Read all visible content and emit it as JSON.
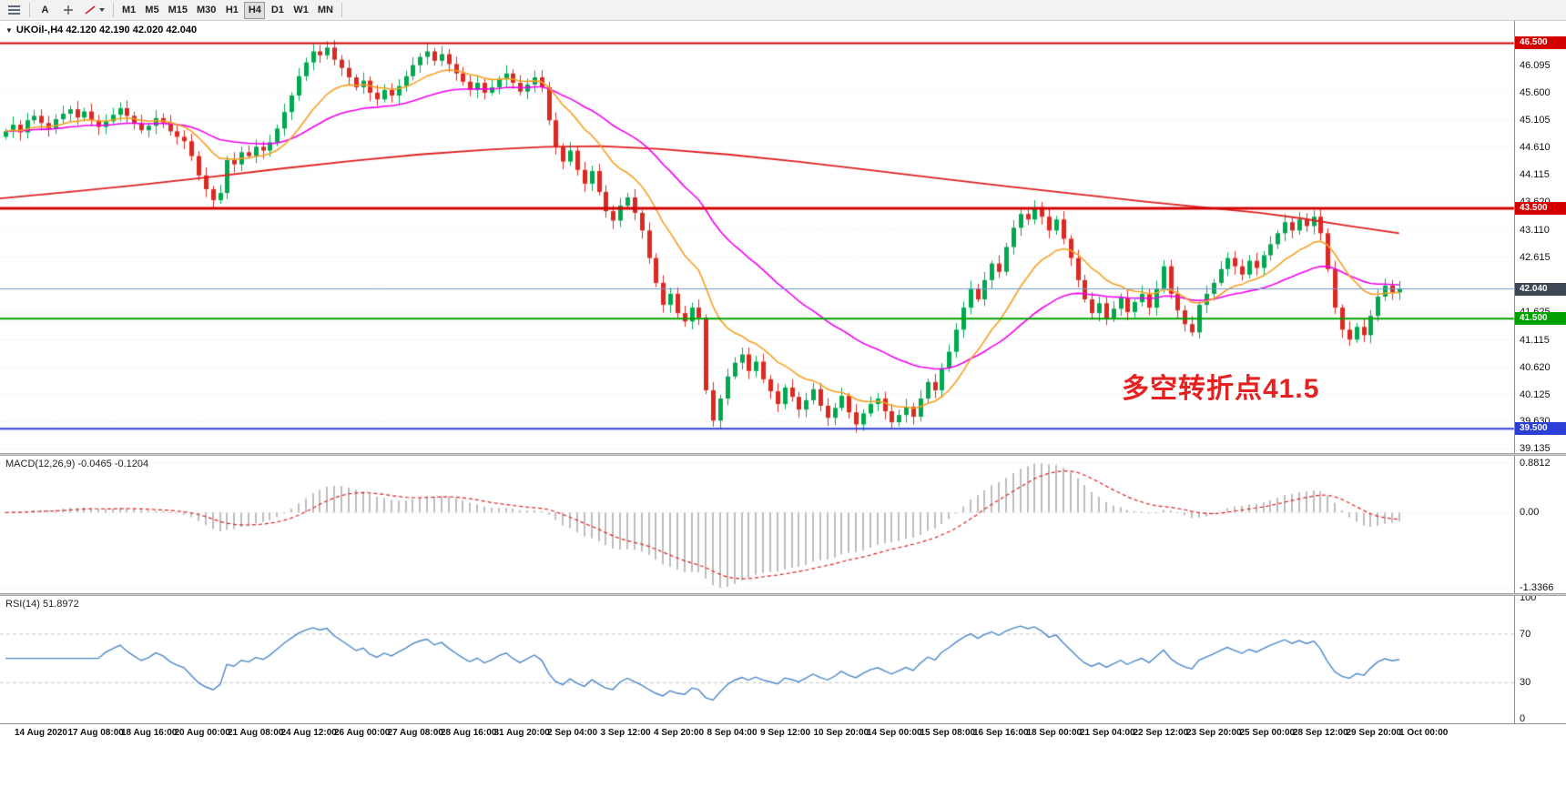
{
  "toolbar": {
    "text_tool_label": "A",
    "timeframes": [
      "M1",
      "M5",
      "M15",
      "M30",
      "H1",
      "H4",
      "D1",
      "W1",
      "MN"
    ],
    "active_timeframe": "H4"
  },
  "symbol_ohlc": "UKOil-,H4  42.120 42.190 42.020 42.040",
  "annotation": {
    "text": "多空转折点41.5",
    "color": "#e52020"
  },
  "chart_data": {
    "type": "candlestick",
    "title": "UKOil-,H4",
    "current_ohlc": {
      "open": "42.120",
      "high": "42.190",
      "low": "42.020",
      "close": "42.040"
    },
    "y_range": [
      39.06,
      46.92
    ],
    "y_axis_labels": [
      "46.095",
      "45.600",
      "45.105",
      "44.610",
      "44.115",
      "43.620",
      "43.110",
      "42.615",
      "41.625",
      "41.115",
      "40.620",
      "40.125",
      "39.630",
      "39.135"
    ],
    "first_open": 44.8,
    "closes": [
      44.9,
      45.02,
      44.88,
      45.1,
      45.18,
      45.05,
      44.95,
      45.12,
      45.22,
      45.3,
      45.15,
      45.26,
      45.1,
      44.98,
      45.08,
      45.2,
      45.32,
      45.18,
      45.05,
      44.92,
      45.0,
      45.14,
      45.06,
      44.9,
      44.8,
      44.72,
      44.45,
      44.1,
      43.85,
      43.65,
      43.78,
      44.38,
      44.3,
      44.52,
      44.45,
      44.62,
      44.55,
      44.7,
      44.95,
      45.25,
      45.55,
      45.9,
      46.15,
      46.35,
      46.28,
      46.42,
      46.2,
      46.05,
      45.88,
      45.7,
      45.82,
      45.6,
      45.48,
      45.65,
      45.55,
      45.72,
      45.9,
      46.1,
      46.25,
      46.35,
      46.18,
      46.3,
      46.12,
      45.95,
      45.8,
      45.65,
      45.78,
      45.6,
      45.7,
      45.85,
      45.95,
      45.78,
      45.62,
      45.75,
      45.88,
      45.7,
      45.1,
      44.62,
      44.35,
      44.55,
      44.2,
      43.95,
      44.18,
      43.8,
      43.45,
      43.28,
      43.55,
      43.7,
      43.42,
      43.1,
      42.6,
      42.15,
      41.75,
      41.95,
      41.6,
      41.45,
      41.7,
      41.52,
      40.2,
      39.65,
      40.05,
      40.45,
      40.7,
      40.85,
      40.55,
      40.72,
      40.4,
      40.18,
      39.95,
      40.25,
      40.08,
      39.85,
      40.02,
      40.22,
      39.92,
      39.7,
      39.88,
      40.1,
      39.8,
      39.58,
      39.78,
      39.95,
      40.05,
      39.82,
      39.62,
      39.75,
      39.9,
      39.72,
      40.05,
      40.35,
      40.2,
      40.6,
      40.9,
      41.3,
      41.7,
      42.05,
      41.85,
      42.2,
      42.5,
      42.35,
      42.8,
      43.15,
      43.4,
      43.3,
      43.52,
      43.35,
      43.1,
      43.3,
      42.95,
      42.6,
      42.2,
      41.85,
      41.6,
      41.78,
      41.5,
      41.68,
      41.88,
      41.62,
      41.8,
      41.95,
      41.7,
      42.05,
      42.45,
      41.95,
      41.65,
      41.4,
      41.25,
      41.75,
      41.95,
      42.15,
      42.4,
      42.6,
      42.45,
      42.3,
      42.55,
      42.42,
      42.65,
      42.85,
      43.05,
      43.25,
      43.1,
      43.3,
      43.18,
      43.35,
      43.05,
      42.4,
      41.7,
      41.3,
      41.12,
      41.35,
      41.2,
      41.55,
      41.9,
      42.1,
      41.98,
      42.04
    ],
    "candle_up_color": "#00a84f",
    "candle_down_color": "#da2a22",
    "horizontal_levels": [
      {
        "price": 46.5,
        "color": "#d40000",
        "width": 2
      },
      {
        "price": 43.5,
        "color": "#d40000",
        "width": 3
      },
      {
        "price": 41.5,
        "color": "#00a000",
        "width": 2
      },
      {
        "price": 39.5,
        "color": "#2b3fd6",
        "width": 2
      }
    ],
    "bid_price": 42.04,
    "bid_color": "#6f97c9",
    "badges": [
      {
        "text": "46.500",
        "price": 46.5,
        "color": "#d40000"
      },
      {
        "text": "43.500",
        "price": 43.5,
        "color": "#d40000"
      },
      {
        "text": "42.040",
        "price": 42.04,
        "color": "#3d4854"
      },
      {
        "text": "41.500",
        "price": 41.5,
        "color": "#00a000"
      },
      {
        "text": "39.500",
        "price": 39.5,
        "color": "#2b3fd6"
      }
    ],
    "overlays": {
      "ma_fast_period": 13,
      "ma_fast_color": "#f5a020",
      "ma_mid_period": 36,
      "ma_mid_color": "#f000f0",
      "ma_slow_color": "#e02020",
      "ma_slow_points": [
        [
          0.0,
          43.68
        ],
        [
          0.05,
          43.8
        ],
        [
          0.1,
          43.93
        ],
        [
          0.15,
          44.07
        ],
        [
          0.2,
          44.22
        ],
        [
          0.25,
          44.36
        ],
        [
          0.3,
          44.48
        ],
        [
          0.35,
          44.57
        ],
        [
          0.39,
          44.62
        ],
        [
          0.43,
          44.63
        ],
        [
          0.47,
          44.58
        ],
        [
          0.52,
          44.48
        ],
        [
          0.57,
          44.35
        ],
        [
          0.62,
          44.2
        ],
        [
          0.67,
          44.05
        ],
        [
          0.72,
          43.9
        ],
        [
          0.77,
          43.76
        ],
        [
          0.82,
          43.62
        ],
        [
          0.86,
          43.52
        ],
        [
          0.9,
          43.42
        ],
        [
          0.93,
          43.32
        ],
        [
          0.96,
          43.2
        ],
        [
          1.0,
          43.05
        ]
      ]
    }
  },
  "macd": {
    "label": "MACD(12,26,9) -0.0465 -0.1204",
    "params": [
      12,
      26,
      9
    ],
    "axis_labels": [
      "0.8812",
      "0.00",
      "-1.3366"
    ],
    "hist_color": "#bdbdbd",
    "signal_color": "#e02020"
  },
  "rsi": {
    "label": "RSI(14) 51.8972",
    "period": 14,
    "axis_labels": [
      "100",
      "70",
      "30",
      "0"
    ],
    "levels": [
      70,
      30
    ],
    "color": "#4a86c8"
  },
  "time_axis": {
    "labels": [
      "14 Aug 2020",
      "17 Aug 08:00",
      "18 Aug 16:00",
      "20 Aug 00:00",
      "21 Aug 08:00",
      "24 Aug 12:00",
      "26 Aug 00:00",
      "27 Aug 08:00",
      "28 Aug 16:00",
      "31 Aug 20:00",
      "2 Sep 04:00",
      "3 Sep 12:00",
      "4 Sep 20:00",
      "8 Sep 04:00",
      "9 Sep 12:00",
      "10 Sep 20:00",
      "14 Sep 00:00",
      "15 Sep 08:00",
      "16 Sep 16:00",
      "18 Sep 00:00",
      "21 Sep 04:00",
      "22 Sep 12:00",
      "23 Sep 20:00",
      "25 Sep 00:00",
      "28 Sep 12:00",
      "29 Sep 20:00",
      "1 Oct 00:00"
    ]
  }
}
